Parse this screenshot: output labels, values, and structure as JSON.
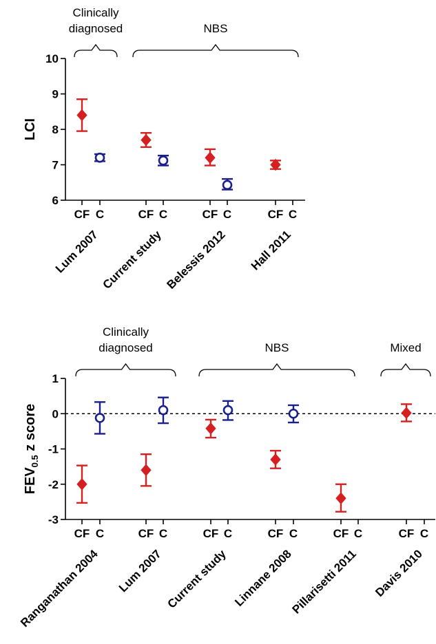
{
  "chart_data": [
    {
      "type": "scatter",
      "ylabel": "LCI",
      "ylim": [
        6,
        10
      ],
      "yticks": [
        "6",
        "7",
        "8",
        "9",
        "10"
      ],
      "groups": [
        {
          "label": "Clinically\ndiagnosed",
          "studies": [
            0
          ]
        },
        {
          "label": "NBS",
          "studies": [
            1,
            2,
            3
          ]
        }
      ],
      "studies": [
        {
          "name": "Lum 2007",
          "cf_label": "CF",
          "c_label": "C",
          "cf": {
            "mean": 8.4,
            "low": 7.95,
            "high": 8.85
          },
          "c": {
            "mean": 7.2,
            "low": 7.1,
            "high": 7.3
          }
        },
        {
          "name": "Current study",
          "cf_label": "CF",
          "c_label": "C",
          "cf": {
            "mean": 7.7,
            "low": 7.5,
            "high": 7.9
          },
          "c": {
            "mean": 7.12,
            "low": 6.98,
            "high": 7.26
          }
        },
        {
          "name": "Belessis 2012",
          "cf_label": "CF",
          "c_label": "C",
          "cf": {
            "mean": 7.2,
            "low": 6.98,
            "high": 7.44
          },
          "c": {
            "mean": 6.43,
            "low": 6.3,
            "high": 6.6
          }
        },
        {
          "name": "Hall 2011",
          "cf_label": "CF",
          "c_label": "C",
          "cf": {
            "mean": 7.0,
            "low": 6.88,
            "high": 7.12
          },
          "c": null
        }
      ],
      "colors": {
        "cf": "#d42020",
        "c": "#1a1f8a"
      }
    },
    {
      "type": "scatter",
      "ylabel": "FEV0.5 z score",
      "ylabel_main": "FEV",
      "ylabel_sub": "0.5",
      "ylabel_rest": " z score",
      "ylim": [
        -3,
        1
      ],
      "yticks": [
        "-3",
        "-2",
        "-1",
        "0",
        "1"
      ],
      "reference_line": 0,
      "groups": [
        {
          "label": "Clinically\ndiagnosed",
          "studies": [
            0,
            1
          ]
        },
        {
          "label": "NBS",
          "studies": [
            2,
            3,
            4
          ]
        },
        {
          "label": "Mixed",
          "studies": [
            5
          ]
        }
      ],
      "studies": [
        {
          "name": "Ranganathan 2004",
          "cf_label": "CF",
          "c_label": "C",
          "cf": {
            "mean": -2.0,
            "low": -2.53,
            "high": -1.47
          },
          "c": {
            "mean": -0.12,
            "low": -0.57,
            "high": 0.33
          }
        },
        {
          "name": "Lum 2007",
          "cf_label": "CF",
          "c_label": "C",
          "cf": {
            "mean": -1.6,
            "low": -2.05,
            "high": -1.15
          },
          "c": {
            "mean": 0.1,
            "low": -0.27,
            "high": 0.46
          }
        },
        {
          "name": "Current study",
          "cf_label": "CF",
          "c_label": "C",
          "cf": {
            "mean": -0.42,
            "low": -0.68,
            "high": -0.17
          },
          "c": {
            "mean": 0.1,
            "low": -0.18,
            "high": 0.36
          }
        },
        {
          "name": "Linnane 2008",
          "cf_label": "CF",
          "c_label": "C",
          "cf": {
            "mean": -1.3,
            "low": -1.55,
            "high": -1.05
          },
          "c": {
            "mean": 0.0,
            "low": -0.25,
            "high": 0.24
          }
        },
        {
          "name": "Pillarisetti 2011",
          "cf_label": "CF",
          "c_label": "C",
          "cf": {
            "mean": -2.4,
            "low": -2.78,
            "high": -2.0
          },
          "c": null
        },
        {
          "name": "Davis 2010",
          "cf_label": "CF",
          "c_label": "C",
          "cf": {
            "mean": 0.02,
            "low": -0.22,
            "high": 0.27
          },
          "c": null
        }
      ],
      "colors": {
        "cf": "#d42020",
        "c": "#1a1f8a"
      }
    }
  ]
}
